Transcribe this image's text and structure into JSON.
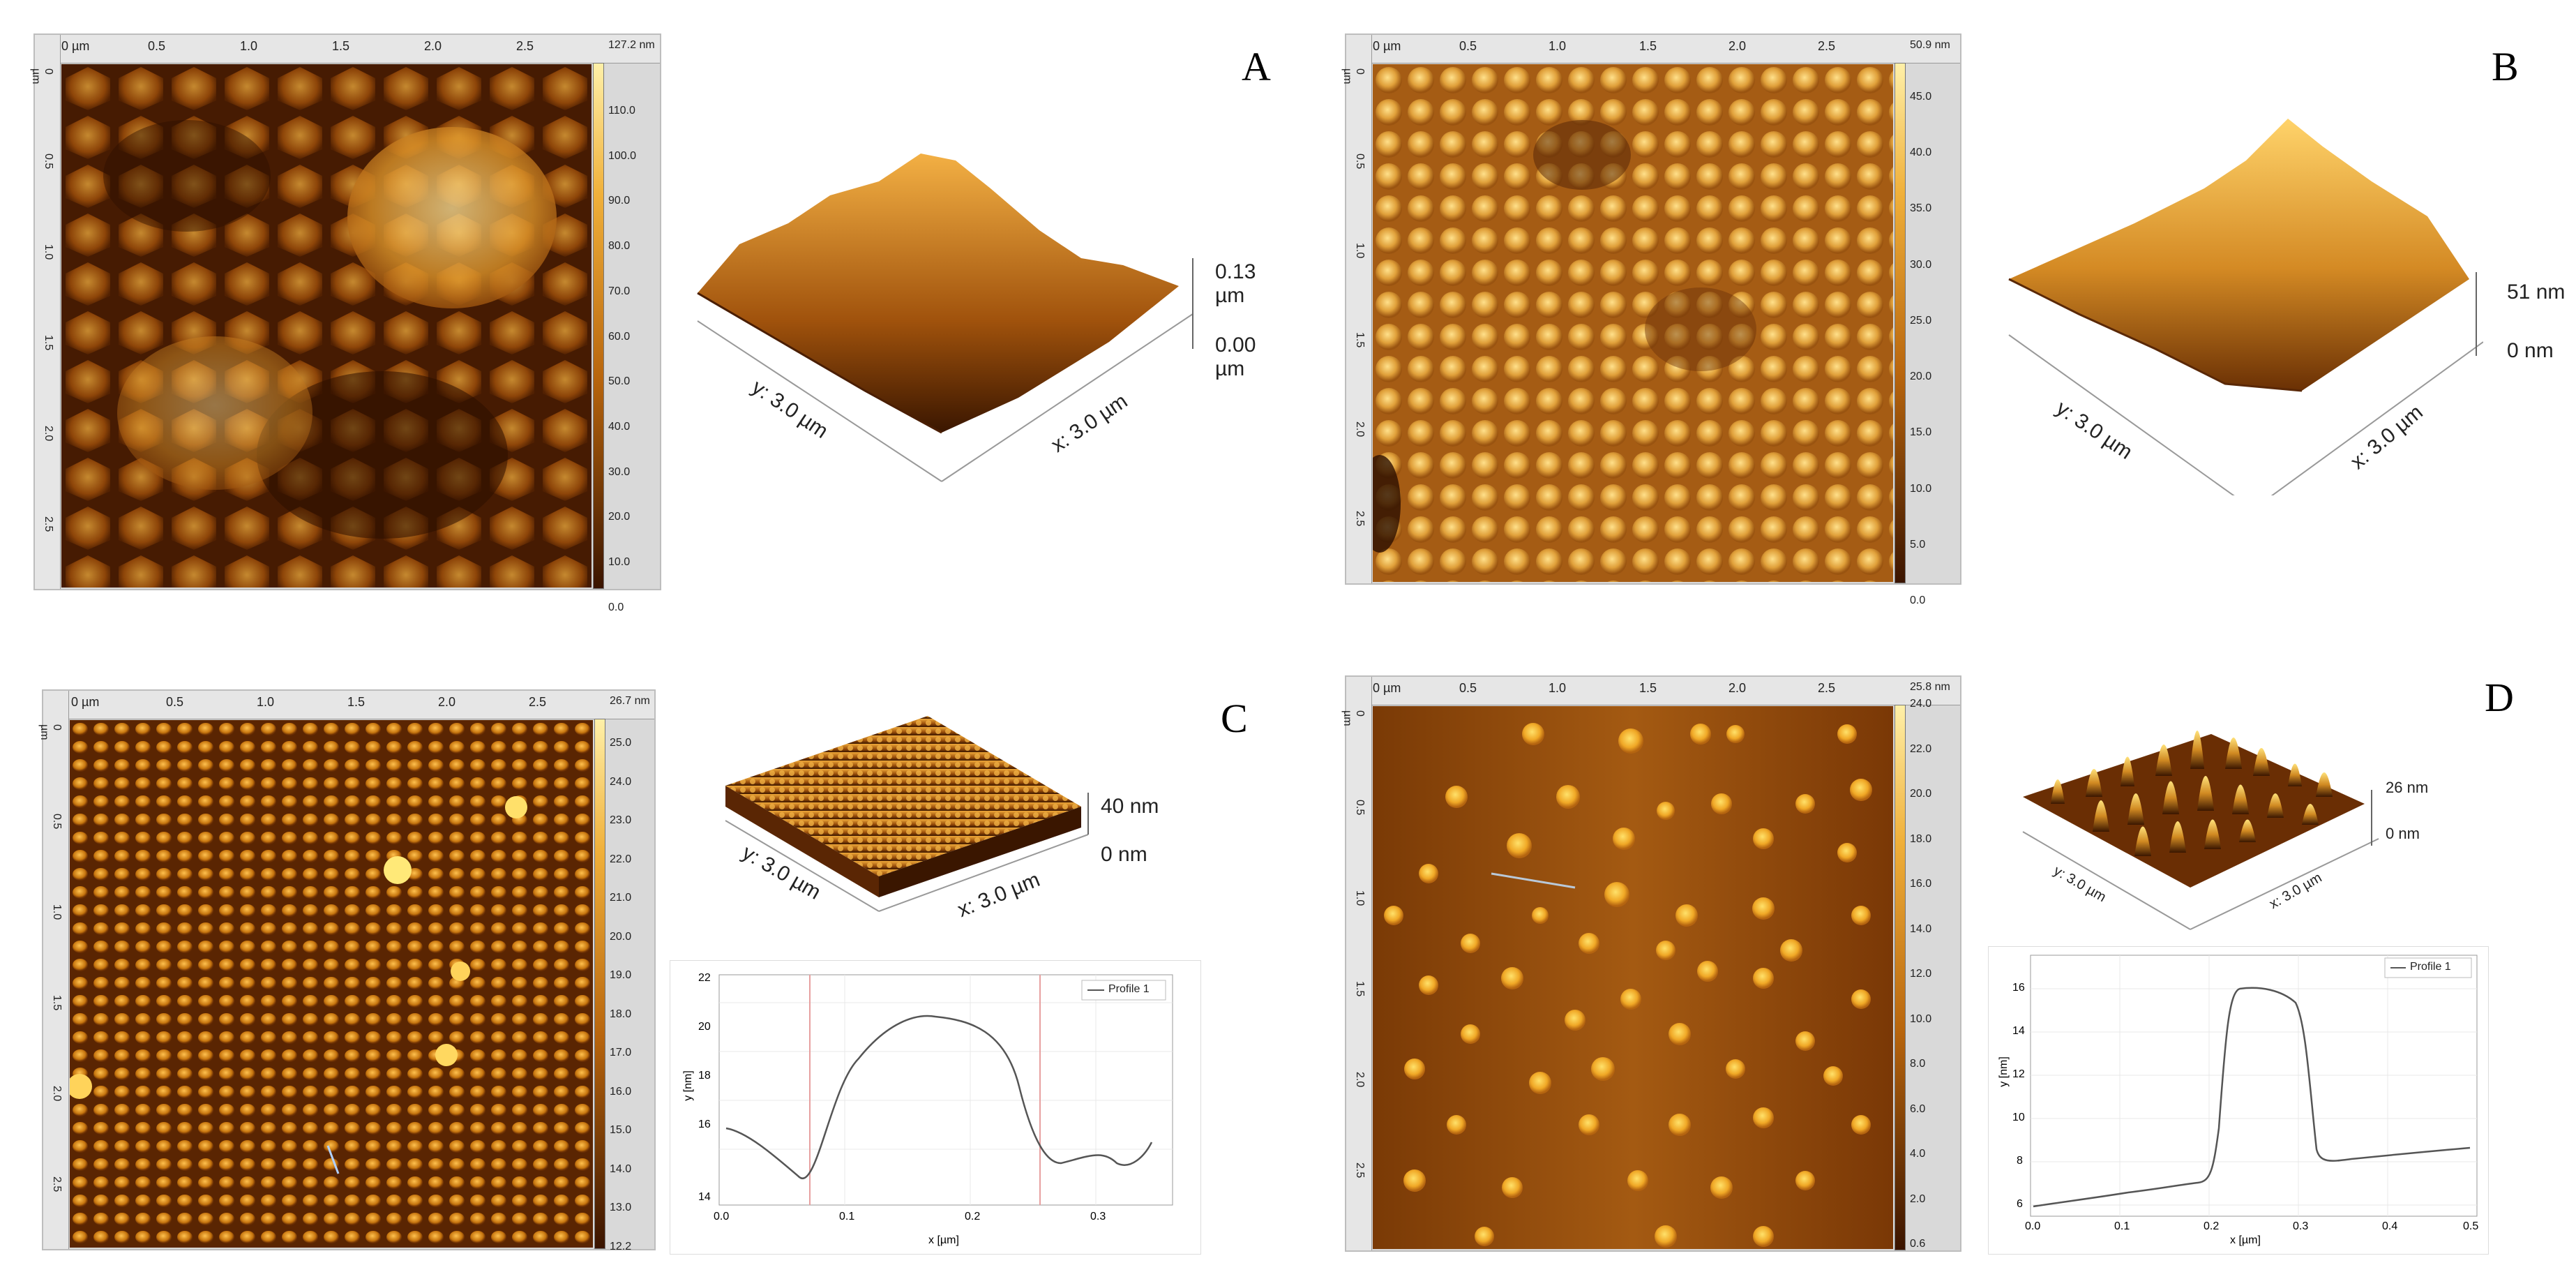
{
  "panels": {
    "A": {
      "label": "A",
      "x_ticks": [
        "0 µm",
        "0.5",
        "1.0",
        "1.5",
        "2.0",
        "2.5"
      ],
      "y_ticks": [
        "0 µm",
        "0.5",
        "1.0",
        "1.5",
        "2.0",
        "2.5"
      ],
      "colorbar_max": "127.2 nm",
      "colorbar_ticks": [
        "110.0",
        "100.0",
        "90.0",
        "80.0",
        "70.0",
        "60.0",
        "50.0",
        "40.0",
        "30.0",
        "20.0",
        "10.0",
        "0.0"
      ],
      "z_top": "0.13 µm",
      "z_bottom": "0.00 µm",
      "y_axis": "y: 3.0 µm",
      "x_axis": "x: 3.0 µm"
    },
    "B": {
      "label": "B",
      "x_ticks": [
        "0 µm",
        "0.5",
        "1.0",
        "1.5",
        "2.0",
        "2.5"
      ],
      "y_ticks": [
        "0 µm",
        "0.5",
        "1.0",
        "1.5",
        "2.0",
        "2.5"
      ],
      "colorbar_max": "50.9 nm",
      "colorbar_ticks": [
        "45.0",
        "40.0",
        "35.0",
        "30.0",
        "25.0",
        "20.0",
        "15.0",
        "10.0",
        "5.0",
        "0.0"
      ],
      "z_top": "51 nm",
      "z_bottom": "0 nm",
      "y_axis": "y: 3.0 µm",
      "x_axis": "x: 3.0 µm"
    },
    "C": {
      "label": "C",
      "x_ticks": [
        "0 µm",
        "0.5",
        "1.0",
        "1.5",
        "2.0",
        "2.5"
      ],
      "y_ticks": [
        "0 µm",
        "0.5",
        "1.0",
        "1.5",
        "2.0",
        "2.5"
      ],
      "colorbar_max": "26.7 nm",
      "colorbar_ticks": [
        "25.0",
        "24.0",
        "23.0",
        "22.0",
        "21.0",
        "20.0",
        "19.0",
        "18.0",
        "17.0",
        "16.0",
        "15.0",
        "14.0",
        "13.0",
        "12.2"
      ],
      "z_top": "40 nm",
      "z_bottom": "0 nm",
      "y_axis": "y: 3.0 µm",
      "x_axis": "x: 3.0 µm",
      "profile": {
        "legend": "Profile 1",
        "xlabel": "x [µm]",
        "ylabel": "y [nm]",
        "x_ticks": [
          "0.0",
          "0.1",
          "0.2",
          "0.3"
        ],
        "y_ticks": [
          "22",
          "20",
          "18",
          "16",
          "14"
        ]
      }
    },
    "D": {
      "label": "D",
      "x_ticks": [
        "0 µm",
        "0.5",
        "1.0",
        "1.5",
        "2.0",
        "2.5"
      ],
      "y_ticks": [
        "0 µm",
        "0.5",
        "1.0",
        "1.5",
        "2.0",
        "2.5"
      ],
      "colorbar_max": "25.8 nm",
      "colorbar_ticks": [
        "24.0",
        "22.0",
        "20.0",
        "18.0",
        "16.0",
        "14.0",
        "12.0",
        "10.0",
        "8.0",
        "6.0",
        "4.0",
        "2.0",
        "0.6"
      ],
      "z_top": "26 nm",
      "z_bottom": "0 nm",
      "y_axis": "y: 3.0 µm",
      "x_axis": "x: 3.0 µm",
      "profile": {
        "legend": "Profile 1",
        "xlabel": "x [µm]",
        "ylabel": "y [nm]",
        "x_ticks": [
          "0.0",
          "0.1",
          "0.2",
          "0.3",
          "0.4",
          "0.5"
        ],
        "y_ticks": [
          "16",
          "14",
          "12",
          "10",
          "8",
          "6"
        ]
      }
    }
  },
  "colors": {
    "afm_dark": "#2a0f00",
    "afm_mid": "#b8650d",
    "afm_bright": "#ffe27a",
    "profile_line": "#555555",
    "marker_line": "#e7a0a0"
  }
}
